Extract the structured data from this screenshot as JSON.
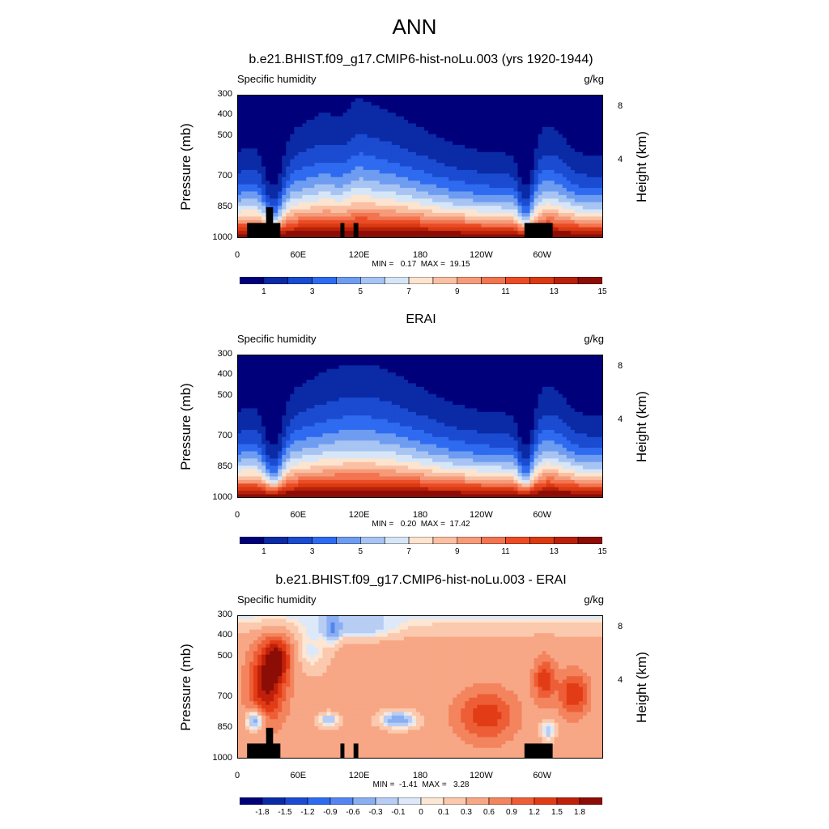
{
  "figure_title": "ANN",
  "chart_data": [
    {
      "type": "heatmap",
      "title": "b.e21.BHIST.f09_g17.CMIP6-hist-noLu.003 (yrs 1920-1944)",
      "variable": "Specific humidity",
      "units": "g/kg",
      "ylabel": "Pressure (mb)",
      "ylabel_right": "Height (km)",
      "xticks": [
        "0",
        "60E",
        "120E",
        "180",
        "120W",
        "60W"
      ],
      "yticks": [
        "300",
        "400",
        "500",
        "700",
        "850",
        "1000"
      ],
      "yticks_right": [
        "8",
        "4"
      ],
      "stats": "MIN =   0.17  MAX =  19.15",
      "colorbar_labels": [
        "1",
        "3",
        "5",
        "7",
        "9",
        "11",
        "13",
        "15"
      ],
      "colorbar_colors": [
        "#00007a",
        "#0a2aa6",
        "#1a4bd0",
        "#2e6bf0",
        "#6e9cf0",
        "#a7c4f3",
        "#d7e6f7",
        "#fde4cf",
        "#f9c0a4",
        "#f69b7a",
        "#f27450",
        "#eb4c26",
        "#d93a12",
        "#b8200a",
        "#8c0c06"
      ],
      "ylim": [
        1000,
        300
      ],
      "xlim": [
        0,
        360
      ],
      "terrain_mask": true
    },
    {
      "type": "heatmap",
      "title": "ERAI",
      "variable": "Specific humidity",
      "units": "g/kg",
      "ylabel": "Pressure (mb)",
      "ylabel_right": "Height (km)",
      "xticks": [
        "0",
        "60E",
        "120E",
        "180",
        "120W",
        "60W"
      ],
      "yticks": [
        "300",
        "400",
        "500",
        "700",
        "850",
        "1000"
      ],
      "yticks_right": [
        "8",
        "4"
      ],
      "stats": "MIN =   0.20  MAX =  17.42",
      "colorbar_labels": [
        "1",
        "3",
        "5",
        "7",
        "9",
        "11",
        "13",
        "15"
      ],
      "colorbar_colors": [
        "#00007a",
        "#0a2aa6",
        "#1a4bd0",
        "#2e6bf0",
        "#6e9cf0",
        "#a7c4f3",
        "#d7e6f7",
        "#fde4cf",
        "#f9c0a4",
        "#f69b7a",
        "#f27450",
        "#eb4c26",
        "#d93a12",
        "#b8200a",
        "#8c0c06"
      ],
      "ylim": [
        1000,
        300
      ],
      "xlim": [
        0,
        360
      ],
      "terrain_mask": false
    },
    {
      "type": "heatmap",
      "title": "b.e21.BHIST.f09_g17.CMIP6-hist-noLu.003 - ERAI",
      "variable": "Specific humidity",
      "units": "g/kg",
      "ylabel": "Pressure (mb)",
      "ylabel_right": "Height (km)",
      "xticks": [
        "0",
        "60E",
        "120E",
        "180",
        "120W",
        "60W"
      ],
      "yticks": [
        "300",
        "400",
        "500",
        "700",
        "850",
        "1000"
      ],
      "yticks_right": [
        "8",
        "4"
      ],
      "stats": "MIN =  -1.41  MAX =   3.28",
      "colorbar_labels": [
        "-1.8",
        "-1.5",
        "-1.2",
        "-0.9",
        "-0.6",
        "-0.3",
        "-0.1",
        "0",
        "0.1",
        "0.3",
        "0.6",
        "0.9",
        "1.2",
        "1.5",
        "1.8"
      ],
      "colorbar_colors": [
        "#00007a",
        "#0a2aa6",
        "#1a4bd0",
        "#2e6bf0",
        "#5585f0",
        "#8aaef2",
        "#b7cdf4",
        "#dde9f8",
        "#fde6d3",
        "#fbc9ad",
        "#f7a785",
        "#f3845e",
        "#ee5e36",
        "#e23c16",
        "#c0200a",
        "#8c0c06"
      ],
      "ylim": [
        1000,
        300
      ],
      "xlim": [
        0,
        360
      ],
      "terrain_mask": true
    }
  ]
}
